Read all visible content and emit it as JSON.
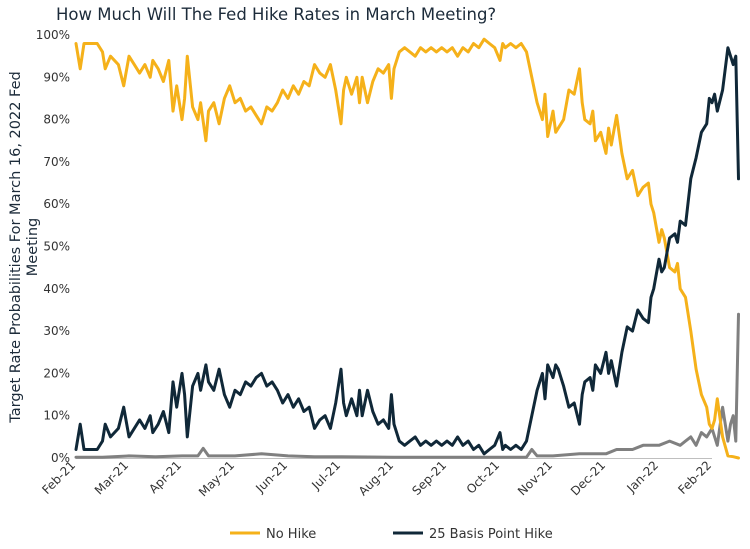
{
  "chart_data": {
    "type": "line",
    "title": "How Much Will The Fed Hike Rates in March Meeting?",
    "xlabel": "",
    "ylabel_lines": [
      "Target Rate Probabilities For March 16, 2022 Fed",
      "Meeting"
    ],
    "x_tick_labels": [
      "Feb-21",
      "Mar-21",
      "Apr-21",
      "May-21",
      "Jun-21",
      "Jul-21",
      "Aug-21",
      "Sep-21",
      "Oct-21",
      "Nov-21",
      "Dec-21",
      "Jan-22",
      "Feb-22"
    ],
    "y_tick_labels": [
      "0%",
      "10%",
      "20%",
      "30%",
      "40%",
      "50%",
      "60%",
      "70%",
      "80%",
      "90%",
      "100%"
    ],
    "ylim": [
      0,
      100
    ],
    "x_unit": "months since Feb-21",
    "grid": false,
    "legend_position": "bottom",
    "legend": [
      "No Hike",
      "25 Basis Point Hike"
    ],
    "series": [
      {
        "name": "No Hike",
        "color": "#f5b11a",
        "points": [
          [
            0,
            98
          ],
          [
            0.08,
            92
          ],
          [
            0.15,
            98
          ],
          [
            0.3,
            98
          ],
          [
            0.4,
            98
          ],
          [
            0.5,
            96
          ],
          [
            0.55,
            92
          ],
          [
            0.65,
            95
          ],
          [
            0.8,
            93
          ],
          [
            0.9,
            88
          ],
          [
            1.0,
            95
          ],
          [
            1.1,
            93
          ],
          [
            1.2,
            91
          ],
          [
            1.3,
            93
          ],
          [
            1.4,
            90
          ],
          [
            1.45,
            94
          ],
          [
            1.55,
            92
          ],
          [
            1.65,
            89
          ],
          [
            1.75,
            94
          ],
          [
            1.83,
            82
          ],
          [
            1.9,
            88
          ],
          [
            2.0,
            80
          ],
          [
            2.05,
            85
          ],
          [
            2.1,
            95
          ],
          [
            2.2,
            83
          ],
          [
            2.3,
            80
          ],
          [
            2.35,
            84
          ],
          [
            2.45,
            75
          ],
          [
            2.5,
            82
          ],
          [
            2.6,
            84
          ],
          [
            2.7,
            79
          ],
          [
            2.8,
            85
          ],
          [
            2.9,
            88
          ],
          [
            3.0,
            84
          ],
          [
            3.1,
            85
          ],
          [
            3.2,
            82
          ],
          [
            3.3,
            83
          ],
          [
            3.4,
            81
          ],
          [
            3.5,
            79
          ],
          [
            3.6,
            83
          ],
          [
            3.7,
            82
          ],
          [
            3.8,
            84
          ],
          [
            3.9,
            87
          ],
          [
            4.0,
            85
          ],
          [
            4.1,
            88
          ],
          [
            4.2,
            86
          ],
          [
            4.3,
            89
          ],
          [
            4.4,
            88
          ],
          [
            4.5,
            93
          ],
          [
            4.6,
            91
          ],
          [
            4.7,
            90
          ],
          [
            4.8,
            93
          ],
          [
            4.9,
            87
          ],
          [
            5.0,
            79
          ],
          [
            5.05,
            87
          ],
          [
            5.1,
            90
          ],
          [
            5.2,
            86
          ],
          [
            5.3,
            90
          ],
          [
            5.35,
            84
          ],
          [
            5.4,
            90
          ],
          [
            5.5,
            84
          ],
          [
            5.6,
            89
          ],
          [
            5.7,
            92
          ],
          [
            5.8,
            91
          ],
          [
            5.9,
            93
          ],
          [
            5.95,
            85
          ],
          [
            6.0,
            92
          ],
          [
            6.1,
            96
          ],
          [
            6.2,
            97
          ],
          [
            6.3,
            96
          ],
          [
            6.4,
            95
          ],
          [
            6.5,
            97
          ],
          [
            6.6,
            96
          ],
          [
            6.7,
            97
          ],
          [
            6.8,
            96
          ],
          [
            6.9,
            97
          ],
          [
            7.0,
            96
          ],
          [
            7.1,
            97
          ],
          [
            7.2,
            95
          ],
          [
            7.3,
            97
          ],
          [
            7.4,
            96
          ],
          [
            7.5,
            98
          ],
          [
            7.6,
            97
          ],
          [
            7.7,
            99
          ],
          [
            7.8,
            98
          ],
          [
            7.9,
            97
          ],
          [
            8.0,
            94
          ],
          [
            8.05,
            98
          ],
          [
            8.1,
            97
          ],
          [
            8.2,
            98
          ],
          [
            8.3,
            97
          ],
          [
            8.4,
            98
          ],
          [
            8.5,
            96
          ],
          [
            8.6,
            90
          ],
          [
            8.7,
            84
          ],
          [
            8.8,
            80
          ],
          [
            8.85,
            86
          ],
          [
            8.9,
            76
          ],
          [
            9.0,
            82
          ],
          [
            9.05,
            77
          ],
          [
            9.1,
            78
          ],
          [
            9.2,
            80
          ],
          [
            9.3,
            87
          ],
          [
            9.4,
            86
          ],
          [
            9.5,
            92
          ],
          [
            9.55,
            84
          ],
          [
            9.6,
            80
          ],
          [
            9.7,
            79
          ],
          [
            9.75,
            82
          ],
          [
            9.8,
            75
          ],
          [
            9.9,
            77
          ],
          [
            10.0,
            72
          ],
          [
            10.05,
            78
          ],
          [
            10.1,
            74
          ],
          [
            10.2,
            81
          ],
          [
            10.3,
            72
          ],
          [
            10.4,
            66
          ],
          [
            10.5,
            68
          ],
          [
            10.6,
            62
          ],
          [
            10.7,
            64
          ],
          [
            10.8,
            65
          ],
          [
            10.85,
            60
          ],
          [
            10.9,
            58
          ],
          [
            11.0,
            51
          ],
          [
            11.05,
            54
          ],
          [
            11.1,
            52
          ],
          [
            11.2,
            45
          ],
          [
            11.3,
            44
          ],
          [
            11.35,
            46
          ],
          [
            11.4,
            40
          ],
          [
            11.5,
            38
          ],
          [
            11.6,
            30
          ],
          [
            11.7,
            21
          ],
          [
            11.8,
            15
          ],
          [
            11.9,
            12
          ],
          [
            11.95,
            8
          ],
          [
            12.0,
            7
          ],
          [
            12.05,
            9
          ],
          [
            12.1,
            14
          ],
          [
            12.2,
            5
          ],
          [
            12.3,
            0.5
          ],
          [
            12.4,
            0.3
          ],
          [
            12.5,
            0
          ]
        ]
      },
      {
        "name": "25 Basis Point Hike",
        "color": "#102838",
        "points": [
          [
            0,
            2
          ],
          [
            0.08,
            8
          ],
          [
            0.15,
            2
          ],
          [
            0.3,
            2
          ],
          [
            0.4,
            2
          ],
          [
            0.5,
            4
          ],
          [
            0.55,
            8
          ],
          [
            0.65,
            5
          ],
          [
            0.8,
            7
          ],
          [
            0.9,
            12
          ],
          [
            1.0,
            5
          ],
          [
            1.1,
            7
          ],
          [
            1.2,
            9
          ],
          [
            1.3,
            7
          ],
          [
            1.4,
            10
          ],
          [
            1.45,
            6
          ],
          [
            1.55,
            8
          ],
          [
            1.65,
            11
          ],
          [
            1.75,
            6
          ],
          [
            1.83,
            18
          ],
          [
            1.9,
            12
          ],
          [
            2.0,
            20
          ],
          [
            2.05,
            15
          ],
          [
            2.1,
            5
          ],
          [
            2.2,
            17
          ],
          [
            2.3,
            20
          ],
          [
            2.35,
            16
          ],
          [
            2.45,
            22
          ],
          [
            2.5,
            18
          ],
          [
            2.6,
            16
          ],
          [
            2.7,
            21
          ],
          [
            2.8,
            15
          ],
          [
            2.9,
            12
          ],
          [
            3.0,
            16
          ],
          [
            3.1,
            15
          ],
          [
            3.2,
            18
          ],
          [
            3.3,
            17
          ],
          [
            3.4,
            19
          ],
          [
            3.5,
            20
          ],
          [
            3.6,
            17
          ],
          [
            3.7,
            18
          ],
          [
            3.8,
            16
          ],
          [
            3.9,
            13
          ],
          [
            4.0,
            15
          ],
          [
            4.1,
            12
          ],
          [
            4.2,
            14
          ],
          [
            4.3,
            11
          ],
          [
            4.4,
            12
          ],
          [
            4.5,
            7
          ],
          [
            4.6,
            9
          ],
          [
            4.7,
            10
          ],
          [
            4.8,
            7
          ],
          [
            4.9,
            13
          ],
          [
            5.0,
            21
          ],
          [
            5.05,
            13
          ],
          [
            5.1,
            10
          ],
          [
            5.2,
            14
          ],
          [
            5.3,
            10
          ],
          [
            5.35,
            16
          ],
          [
            5.4,
            10
          ],
          [
            5.5,
            16
          ],
          [
            5.6,
            11
          ],
          [
            5.7,
            8
          ],
          [
            5.8,
            9
          ],
          [
            5.9,
            7
          ],
          [
            5.95,
            15
          ],
          [
            6.0,
            8
          ],
          [
            6.1,
            4
          ],
          [
            6.2,
            3
          ],
          [
            6.3,
            4
          ],
          [
            6.4,
            5
          ],
          [
            6.5,
            3
          ],
          [
            6.6,
            4
          ],
          [
            6.7,
            3
          ],
          [
            6.8,
            4
          ],
          [
            6.9,
            3
          ],
          [
            7.0,
            4
          ],
          [
            7.1,
            3
          ],
          [
            7.2,
            5
          ],
          [
            7.3,
            3
          ],
          [
            7.4,
            4
          ],
          [
            7.5,
            2
          ],
          [
            7.6,
            3
          ],
          [
            7.7,
            1
          ],
          [
            7.8,
            2
          ],
          [
            7.9,
            3
          ],
          [
            8.0,
            6
          ],
          [
            8.05,
            2
          ],
          [
            8.1,
            3
          ],
          [
            8.2,
            2
          ],
          [
            8.3,
            3
          ],
          [
            8.4,
            2
          ],
          [
            8.5,
            4
          ],
          [
            8.6,
            10
          ],
          [
            8.7,
            16
          ],
          [
            8.8,
            20
          ],
          [
            8.85,
            14
          ],
          [
            8.9,
            22
          ],
          [
            9.0,
            19
          ],
          [
            9.05,
            22
          ],
          [
            9.1,
            21
          ],
          [
            9.2,
            17
          ],
          [
            9.3,
            12
          ],
          [
            9.4,
            13
          ],
          [
            9.5,
            8
          ],
          [
            9.55,
            15
          ],
          [
            9.6,
            18
          ],
          [
            9.7,
            19
          ],
          [
            9.75,
            16
          ],
          [
            9.8,
            22
          ],
          [
            9.9,
            20
          ],
          [
            10.0,
            25
          ],
          [
            10.05,
            20
          ],
          [
            10.1,
            23
          ],
          [
            10.2,
            17
          ],
          [
            10.3,
            25
          ],
          [
            10.4,
            31
          ],
          [
            10.5,
            30
          ],
          [
            10.6,
            35
          ],
          [
            10.7,
            33
          ],
          [
            10.8,
            32
          ],
          [
            10.85,
            38
          ],
          [
            10.9,
            40
          ],
          [
            11.0,
            47
          ],
          [
            11.05,
            44
          ],
          [
            11.1,
            45
          ],
          [
            11.2,
            52
          ],
          [
            11.3,
            53
          ],
          [
            11.35,
            51
          ],
          [
            11.4,
            56
          ],
          [
            11.5,
            55
          ],
          [
            11.6,
            66
          ],
          [
            11.7,
            71
          ],
          [
            11.8,
            77
          ],
          [
            11.9,
            79
          ],
          [
            11.95,
            85
          ],
          [
            12.0,
            84
          ],
          [
            12.05,
            86
          ],
          [
            12.1,
            82
          ],
          [
            12.2,
            87
          ],
          [
            12.3,
            97
          ],
          [
            12.4,
            93
          ],
          [
            12.45,
            95
          ],
          [
            12.5,
            66
          ]
        ]
      },
      {
        "name": "",
        "color": "#808080",
        "points": [
          [
            0,
            0.2
          ],
          [
            0.5,
            0.2
          ],
          [
            1.0,
            0.5
          ],
          [
            1.5,
            0.3
          ],
          [
            2.0,
            0.5
          ],
          [
            2.3,
            0.5
          ],
          [
            2.4,
            2.3
          ],
          [
            2.5,
            0.5
          ],
          [
            3.0,
            0.5
          ],
          [
            3.5,
            1.0
          ],
          [
            4.0,
            0.5
          ],
          [
            4.5,
            0.3
          ],
          [
            5.0,
            0.3
          ],
          [
            6.0,
            0.2
          ],
          [
            7.0,
            0.2
          ],
          [
            8.0,
            0.2
          ],
          [
            8.5,
            0.2
          ],
          [
            8.6,
            2
          ],
          [
            8.7,
            0.5
          ],
          [
            9.0,
            0.5
          ],
          [
            9.5,
            1
          ],
          [
            10.0,
            1
          ],
          [
            10.2,
            2
          ],
          [
            10.5,
            2
          ],
          [
            10.7,
            3
          ],
          [
            11.0,
            3
          ],
          [
            11.2,
            4
          ],
          [
            11.4,
            3
          ],
          [
            11.5,
            4
          ],
          [
            11.6,
            5
          ],
          [
            11.7,
            3
          ],
          [
            11.8,
            6
          ],
          [
            11.9,
            5
          ],
          [
            12.0,
            7
          ],
          [
            12.1,
            3
          ],
          [
            12.2,
            12
          ],
          [
            12.3,
            4
          ],
          [
            12.35,
            8
          ],
          [
            12.4,
            10
          ],
          [
            12.45,
            4
          ],
          [
            12.5,
            34
          ]
        ]
      }
    ]
  }
}
